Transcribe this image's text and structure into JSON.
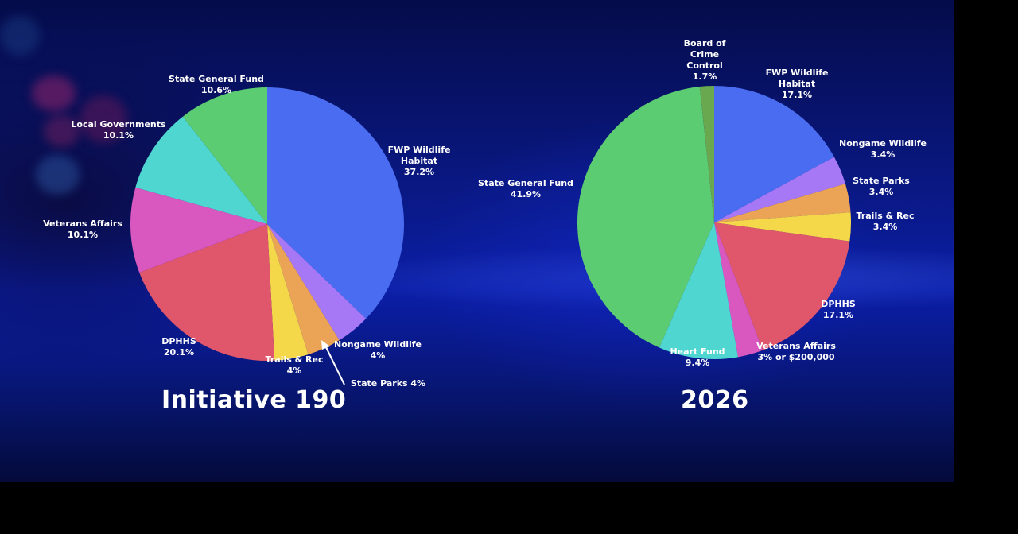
{
  "chart_data": [
    {
      "type": "pie",
      "title": "Initiative 190",
      "slices": [
        {
          "label": [
            "FWP Wildlife",
            "Habitat"
          ],
          "value_text": "37.2%",
          "value": 37.2,
          "color": "#4a6cf0"
        },
        {
          "label": [
            "Nongame Wildlife"
          ],
          "value_text": "4%",
          "value": 4,
          "color": "#a678f5"
        },
        {
          "label": [
            "State Parks 4%"
          ],
          "value_text": "",
          "value": 4,
          "color": "#eba355"
        },
        {
          "label": [
            "Trails & Rec"
          ],
          "value_text": "4%",
          "value": 4,
          "color": "#f5d84a"
        },
        {
          "label": [
            "DPHHS"
          ],
          "value_text": "20.1%",
          "value": 20.1,
          "color": "#e0566a"
        },
        {
          "label": [
            "Veterans Affairs"
          ],
          "value_text": "10.1%",
          "value": 10.1,
          "color": "#d858c0"
        },
        {
          "label": [
            "Local Governments"
          ],
          "value_text": "10.1%",
          "value": 10.1,
          "color": "#4fd6d0"
        },
        {
          "label": [
            "State General Fund"
          ],
          "value_text": "10.6%",
          "value": 10.6,
          "color": "#5ccc72"
        }
      ]
    },
    {
      "type": "pie",
      "title": "2026",
      "slices": [
        {
          "label": [
            "FWP Wildlife",
            "Habitat"
          ],
          "value_text": "17.1%",
          "value": 17.1,
          "color": "#4a6cf0"
        },
        {
          "label": [
            "Nongame Wildlife"
          ],
          "value_text": "3.4%",
          "value": 3.4,
          "color": "#a678f5"
        },
        {
          "label": [
            "State Parks"
          ],
          "value_text": "3.4%",
          "value": 3.4,
          "color": "#eba355"
        },
        {
          "label": [
            "Trails & Rec"
          ],
          "value_text": "3.4%",
          "value": 3.4,
          "color": "#f5d84a"
        },
        {
          "label": [
            "DPHHS"
          ],
          "value_text": "17.1%",
          "value": 17.1,
          "color": "#e0566a"
        },
        {
          "label": [
            "Veterans Affairs"
          ],
          "value_text": "3% or $200,000",
          "value": 3,
          "color": "#d858c0"
        },
        {
          "label": [
            "Heart Fund"
          ],
          "value_text": "9.4%",
          "value": 9.4,
          "color": "#4fd6d0"
        },
        {
          "label": [
            "State General Fund"
          ],
          "value_text": "41.9%",
          "value": 41.9,
          "color": "#5ccc72"
        },
        {
          "label": [
            "Board of",
            "Crime",
            "Control"
          ],
          "value_text": "1.7%",
          "value": 1.7,
          "color": "#6aa84f"
        }
      ]
    }
  ]
}
